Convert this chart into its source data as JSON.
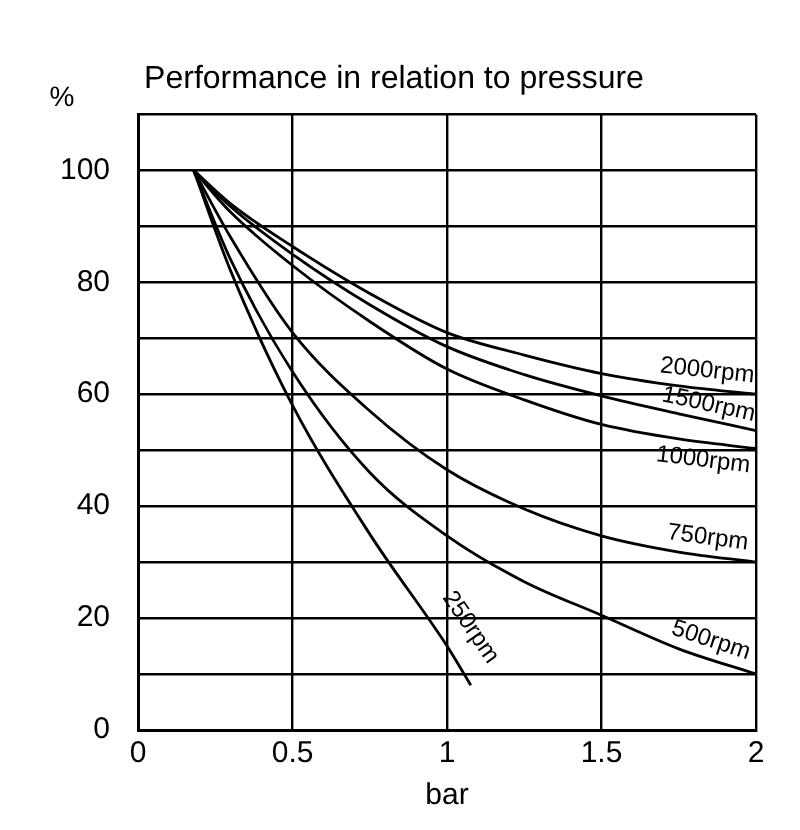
{
  "chart_data": {
    "type": "line",
    "title": "Performance in relation to pressure",
    "xlabel": "bar",
    "ylabel": "%",
    "xlim": [
      0,
      2
    ],
    "xticks": [
      0,
      0.5,
      1,
      1.5,
      2
    ],
    "ylim": [
      0,
      110
    ],
    "yticks": [
      0,
      {
        "value": 10,
        "label": null
      },
      20,
      {
        "value": 30,
        "label": null
      },
      40,
      {
        "value": 50,
        "label": null
      },
      60,
      {
        "value": 70,
        "label": null
      },
      80,
      {
        "value": 90,
        "label": null
      },
      100,
      {
        "value": 110,
        "label": null
      }
    ],
    "grid": true,
    "legend": false,
    "marker": "none",
    "line_style": "solid",
    "series": [
      {
        "name": "2000rpm",
        "color": "#000000",
        "x": [
          0.18,
          0.3,
          0.5,
          0.75,
          1,
          1.25,
          1.5,
          1.75,
          2
        ],
        "values": [
          100,
          94,
          86.4,
          78,
          71,
          67,
          63.7,
          61.5,
          60
        ]
      },
      {
        "name": "1500rpm",
        "color": "#000000",
        "x": [
          0.18,
          0.3,
          0.5,
          0.75,
          1,
          1.25,
          1.5,
          1.75,
          2
        ],
        "values": [
          100,
          93.5,
          85,
          76,
          68.5,
          63.5,
          59.7,
          56.5,
          53.5
        ]
      },
      {
        "name": "1000rpm",
        "color": "#000000",
        "x": [
          0.18,
          0.3,
          0.5,
          0.75,
          1,
          1.25,
          1.5,
          1.75,
          2
        ],
        "values": [
          100,
          92.5,
          83,
          73,
          64.5,
          59,
          54.6,
          52,
          50.3
        ]
      },
      {
        "name": "750rpm",
        "color": "#000000",
        "x": [
          0.18,
          0.3,
          0.5,
          0.75,
          1,
          1.25,
          1.5,
          1.75,
          2
        ],
        "values": [
          100,
          88,
          71,
          57,
          46.5,
          39.5,
          34.7,
          31.8,
          30
        ]
      },
      {
        "name": "500rpm",
        "color": "#000000",
        "x": [
          0.18,
          0.3,
          0.5,
          0.75,
          1,
          1.25,
          1.5,
          1.75,
          2
        ],
        "values": [
          100,
          84,
          64,
          46,
          34.7,
          26.5,
          20.5,
          14.5,
          10
        ]
      },
      {
        "name": "250rpm",
        "color": "#000000",
        "x": [
          0.18,
          0.3,
          0.5,
          0.75,
          1,
          1.077
        ],
        "values": [
          100,
          82,
          58,
          35,
          15,
          8
        ]
      }
    ]
  }
}
